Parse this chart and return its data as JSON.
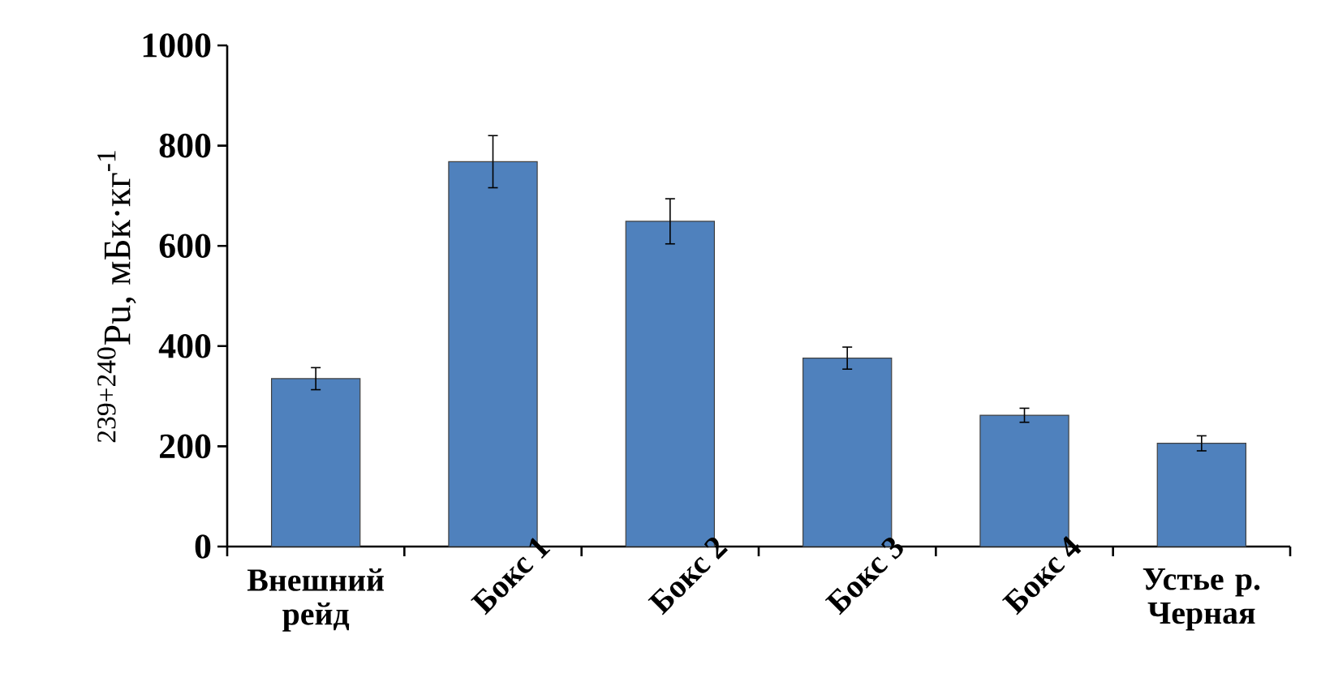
{
  "chart_data": {
    "type": "bar",
    "ylabel": "$^{239+240}$Pu, мБк·кг$^{-1}$",
    "categories": [
      "Внешний рейд",
      "Бокс 1",
      "Бокс 2",
      "Бокс 3",
      "Бокс 4",
      "Устье р. Черная"
    ],
    "values": [
      335,
      768,
      649,
      376,
      262,
      206
    ],
    "errors": [
      22,
      52,
      45,
      22,
      14,
      15
    ],
    "color": "#4f81bd",
    "ylim": [
      0,
      1000
    ],
    "yticks": [
      0,
      200,
      400,
      600,
      800,
      1000
    ],
    "grid": false
  }
}
